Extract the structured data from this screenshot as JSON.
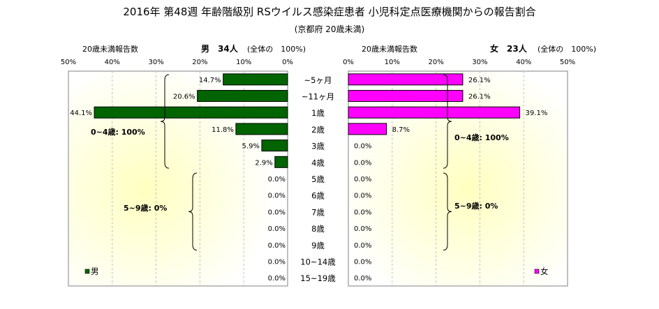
{
  "chart_data": {
    "type": "bar",
    "title": "2016年 第48週 年齢階級別 RSウイルス感染症患者 小児科定点医療機関からの報告割合",
    "subtitle": "(京都府 20歳未満)",
    "categories": [
      "~5ヶ月",
      "~11ヶ月",
      "1歳",
      "2歳",
      "3歳",
      "4歳",
      "5歳",
      "6歳",
      "7歳",
      "8歳",
      "9歳",
      "10~14歳",
      "15~19歳"
    ],
    "series": [
      {
        "name": "男",
        "values": [
          14.7,
          20.6,
          44.1,
          11.8,
          5.9,
          2.9,
          0.0,
          0.0,
          0.0,
          0.0,
          0.0,
          0.0,
          0.0
        ],
        "labels": [
          "14.7%",
          "20.6%",
          "44.1%",
          "11.8%",
          "5.9%",
          "2.9%",
          "0.0%",
          "0.0%",
          "0.0%",
          "0.0%",
          "0.0%",
          "0.0%",
          "0.0%"
        ]
      },
      {
        "name": "女",
        "values": [
          26.1,
          26.1,
          39.1,
          8.7,
          0.0,
          0.0,
          0.0,
          0.0,
          0.0,
          0.0,
          0.0,
          0.0,
          0.0
        ],
        "labels": [
          "26.1%",
          "26.1%",
          "39.1%",
          "8.7%",
          "0.0%",
          "0.0%",
          "0.0%",
          "0.0%",
          "0.0%",
          "0.0%",
          "0.0%",
          "0.0%",
          "0.0%"
        ]
      }
    ],
    "xlim": [
      0,
      50
    ],
    "ticks": [
      "50%",
      "40%",
      "30%",
      "20%",
      "10%",
      "0%"
    ],
    "ticks_right": [
      "0%",
      "10%",
      "20%",
      "30%",
      "40%",
      "50%"
    ],
    "grid": true,
    "colors": {
      "male": "#006400",
      "female": "#ff00ff",
      "background_glow": "#ffffc0"
    }
  },
  "header": {
    "left_axis_label": "20歳未満報告数",
    "right_axis_label": "20歳未満報告数",
    "male_label": "男　34人",
    "male_total": "(全体の　100%)",
    "female_label": "女　23人",
    "female_total": "(全体の　100%)"
  },
  "annotations": {
    "male_0_4": "0~4歳: 100%",
    "male_5_9": "5~9歳: 0%",
    "female_0_4": "0~4歳: 100%",
    "female_5_9": "5~9歳: 0%"
  },
  "legend": {
    "male": "男",
    "female": "女"
  }
}
